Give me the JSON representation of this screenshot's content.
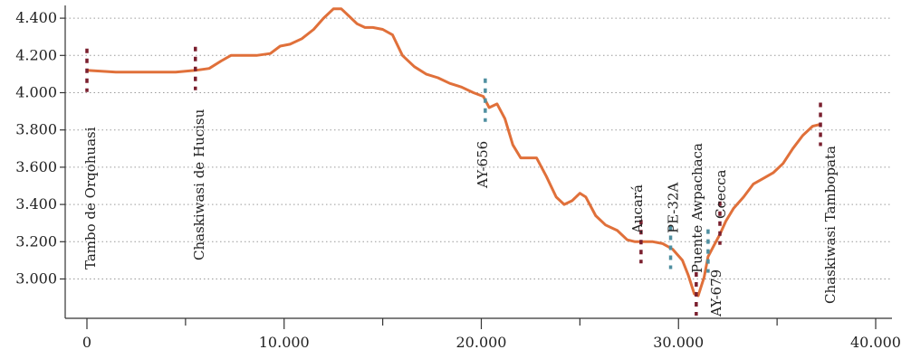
{
  "chart_data": {
    "type": "line",
    "title": "",
    "xlabel": "",
    "ylabel": "",
    "xlim": [
      0,
      40000
    ],
    "ylim": [
      2800,
      4450
    ],
    "x_ticks": [
      0,
      10000,
      20000,
      30000,
      40000
    ],
    "x_tick_labels": [
      "0",
      "10.000",
      "20.000",
      "30.000",
      "40.000"
    ],
    "y_ticks": [
      3000,
      3200,
      3400,
      3600,
      3800,
      4000,
      4200,
      4400
    ],
    "y_tick_labels": [
      "3.000",
      "3.200",
      "3.400",
      "3.600",
      "3.800",
      "4.000",
      "4.200",
      "4.400"
    ],
    "grid": "horizontal dotted",
    "series": [
      {
        "color": "#e0703a",
        "x": [
          0,
          1500,
          3000,
          4500,
          5500,
          6200,
          6800,
          7300,
          8000,
          8600,
          9300,
          9800,
          10300,
          10900,
          11500,
          12000,
          12500,
          12900,
          13300,
          13700,
          14100,
          14500,
          15000,
          15500,
          16000,
          16600,
          17200,
          17800,
          18400,
          19000,
          19600,
          20100,
          20400,
          20800,
          21200,
          21600,
          22000,
          22400,
          22800,
          23300,
          23800,
          24200,
          24600,
          25000,
          25300,
          25800,
          26300,
          26900,
          27400,
          27800,
          28200,
          28700,
          29200,
          29700,
          30200,
          30500,
          30800,
          31000,
          31300,
          31500,
          31800,
          32100,
          32400,
          32800,
          33300,
          33800,
          34300,
          34800,
          35300,
          35800,
          36300,
          36800,
          37200
        ],
        "y": [
          4120,
          4110,
          4110,
          4110,
          4120,
          4130,
          4170,
          4200,
          4200,
          4200,
          4210,
          4250,
          4260,
          4290,
          4340,
          4400,
          4450,
          4450,
          4410,
          4370,
          4350,
          4350,
          4340,
          4310,
          4200,
          4140,
          4100,
          4080,
          4050,
          4030,
          4000,
          3980,
          3920,
          3940,
          3860,
          3720,
          3650,
          3650,
          3650,
          3550,
          3440,
          3400,
          3420,
          3460,
          3440,
          3340,
          3290,
          3260,
          3210,
          3200,
          3200,
          3200,
          3190,
          3160,
          3100,
          3020,
          2920,
          2910,
          3010,
          3120,
          3180,
          3240,
          3310,
          3380,
          3440,
          3510,
          3540,
          3570,
          3620,
          3700,
          3770,
          3820,
          3830
        ]
      }
    ],
    "annotations": [
      {
        "label": "Tambo de Orqohuasi",
        "x": 0,
        "y": 4120,
        "color": "#7a1f2e"
      },
      {
        "label": "Chaskiwasi de Hucisu",
        "x": 5500,
        "y": 4130,
        "color": "#7a1f2e"
      },
      {
        "label": "AY-656",
        "x": 20200,
        "y": 3960,
        "color": "#4f8fa0"
      },
      {
        "label": "Aucará",
        "x": 28100,
        "y": 3200,
        "color": "#7a1f2e"
      },
      {
        "label": "PE-32A",
        "x": 29600,
        "y": 3170,
        "color": "#4f8fa0"
      },
      {
        "label": "Puente Awpachaca",
        "x": 30900,
        "y": 2920,
        "color": "#7a1f2e"
      },
      {
        "label": "AY-679",
        "x": 31500,
        "y": 3150,
        "color": "#4f8fa0"
      },
      {
        "label": "Ccecca",
        "x": 32100,
        "y": 3300,
        "color": "#7a1f2e"
      },
      {
        "label": "Chaskiwasi Tambopata",
        "x": 37200,
        "y": 3830,
        "color": "#7a1f2e"
      }
    ]
  }
}
